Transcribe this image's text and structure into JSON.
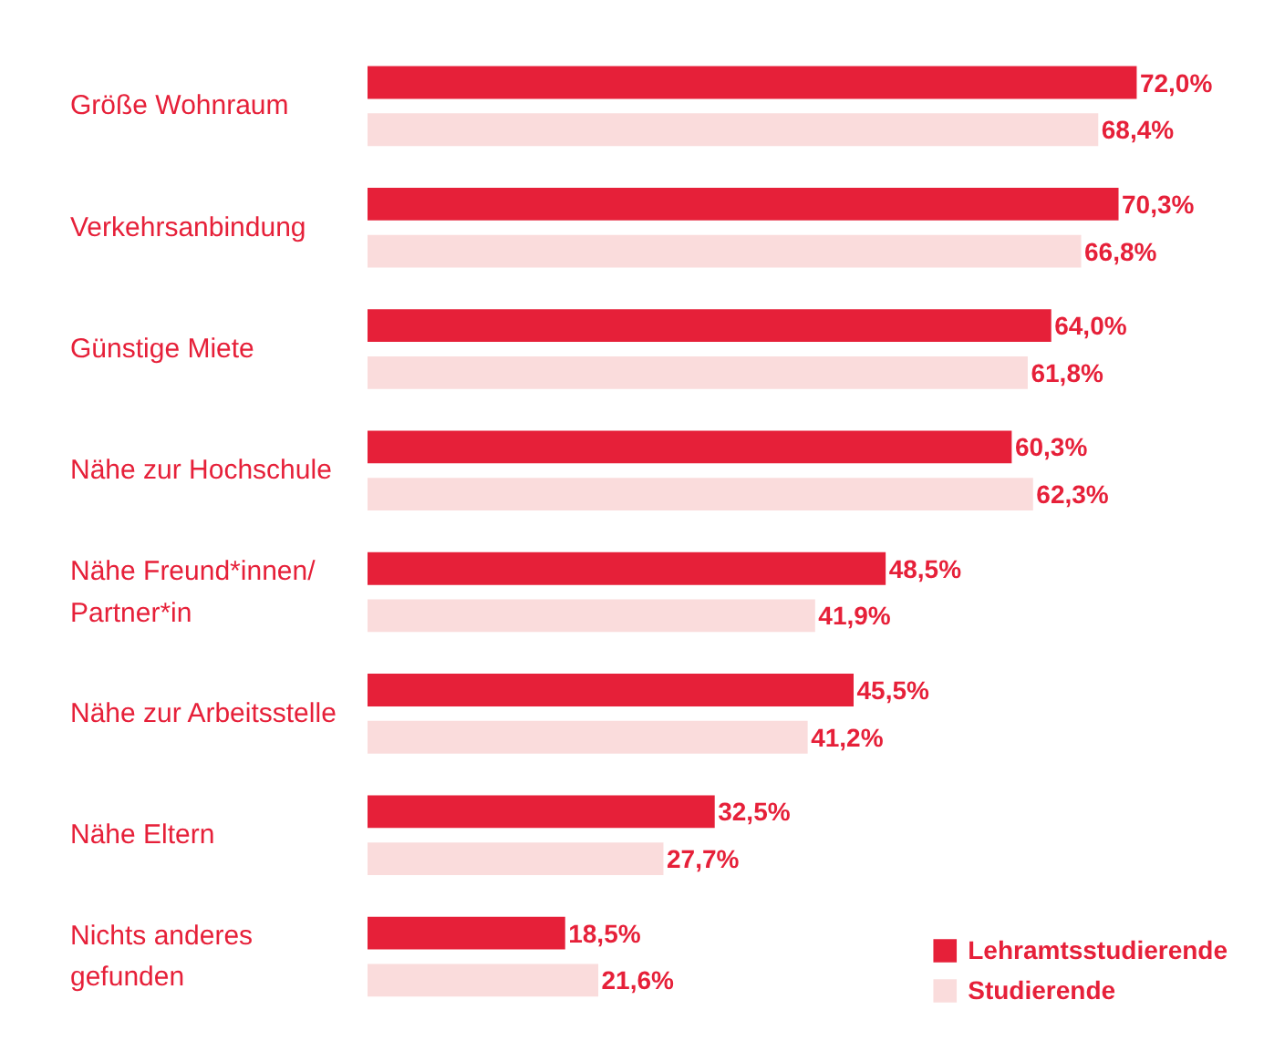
{
  "chart_data": {
    "type": "bar",
    "orientation": "horizontal",
    "categories": [
      "Größe Wohnraum",
      "Verkehrsanbindung",
      "Günstige Miete",
      "Nähe zur Hochschule",
      "Nähe Freund*innen/\nPartner*in",
      "Nähe zur Arbeitsstelle",
      "Nähe Eltern",
      "Nichts anderes\ngefunden"
    ],
    "series": [
      {
        "name": "Lehramtsstudierende",
        "color": "#e62039",
        "values": [
          72.0,
          70.3,
          64.0,
          60.3,
          48.5,
          45.5,
          32.5,
          18.5
        ],
        "value_labels": [
          "72,0%",
          "70,3%",
          "64,0%",
          "60,3%",
          "48,5%",
          "45,5%",
          "32,5%",
          "18,5%"
        ]
      },
      {
        "name": "Studierende",
        "color": "#fadcdc",
        "values": [
          68.4,
          66.8,
          61.8,
          62.3,
          41.9,
          41.2,
          27.7,
          21.6
        ],
        "value_labels": [
          "68,4%",
          "66,8%",
          "61,8%",
          "62,3%",
          "41,9%",
          "41,2%",
          "27,7%",
          "21,6%"
        ]
      }
    ],
    "xlim": [
      0,
      84
    ],
    "legend": "bottom right",
    "grid": false
  }
}
